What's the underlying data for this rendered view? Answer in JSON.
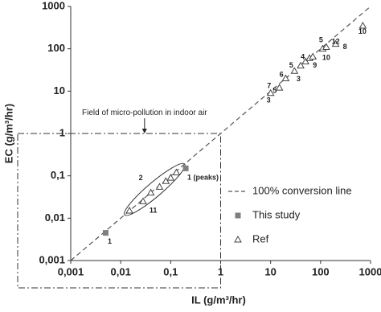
{
  "chart_data": {
    "type": "scatter",
    "x_label": "IL (g/m³/hr)",
    "y_label": "EC (g/m³/hr)",
    "log_x": true,
    "log_y": true,
    "xlim": [
      0.001,
      1000
    ],
    "ylim": [
      0.001,
      1000
    ],
    "xticks": [
      {
        "value": 0.001,
        "label": "0,001"
      },
      {
        "value": 0.01,
        "label": "0,01"
      },
      {
        "value": 0.1,
        "label": "0,1"
      },
      1,
      10,
      100,
      1000
    ],
    "yticks": [
      {
        "value": 0.001,
        "label": "0,001"
      },
      {
        "value": 0.01,
        "label": "0,01"
      },
      {
        "value": 0.1,
        "label": "0,1"
      },
      1,
      10,
      100,
      1000
    ],
    "legend": "lower right",
    "series": [
      {
        "name": "100% conversion line",
        "marker": "dashed-line",
        "color": "#555555",
        "x": [
          0.001,
          1000
        ],
        "values": [
          0.001,
          1000
        ]
      },
      {
        "name": "This study",
        "marker": "square",
        "color": "#7f7f7f",
        "x": [
          0.005,
          0.2
        ],
        "values": [
          0.0045,
          0.15
        ]
      },
      {
        "name": "Ref",
        "marker": "triangle",
        "color": "#444444",
        "x": [
          0.015,
          0.028,
          0.04,
          0.06,
          0.08,
          0.1,
          0.13,
          10,
          15,
          20,
          30,
          40,
          50,
          60,
          70,
          110,
          130,
          200,
          700
        ],
        "values": [
          0.015,
          0.025,
          0.04,
          0.055,
          0.075,
          0.09,
          0.12,
          9,
          12,
          20,
          30,
          40,
          50,
          60,
          65,
          100,
          110,
          130,
          350
        ]
      }
    ],
    "annotations": [
      {
        "text": "Field of micro-pollution in indoor air",
        "x": 0.03,
        "y": 3.1
      },
      {
        "text": "1",
        "x": 0.0055,
        "y": 0.0028
      },
      {
        "text": "1 (peaks)",
        "x": 0.215,
        "y": 0.09
      },
      {
        "text": "2",
        "x": 0.023,
        "y": 0.087
      },
      {
        "text": "11",
        "x": 0.0376,
        "y": 0.015
      },
      {
        "text": "3",
        "x": 8.3,
        "y": 6
      },
      {
        "text": "7",
        "x": 8.5,
        "y": 13
      },
      {
        "text": "5",
        "x": 11,
        "y": 10
      },
      {
        "text": "6",
        "x": 15,
        "y": 24
      },
      {
        "text": "5",
        "x": 23.5,
        "y": 40
      },
      {
        "text": "3",
        "x": 33,
        "y": 19
      },
      {
        "text": "4",
        "x": 40,
        "y": 63
      },
      {
        "text": "9",
        "x": 70,
        "y": 40
      },
      {
        "text": "5",
        "x": 93,
        "y": 160
      },
      {
        "text": "10",
        "x": 108,
        "y": 61
      },
      {
        "text": "12",
        "x": 167,
        "y": 145
      },
      {
        "text": "8",
        "x": 280,
        "y": 110
      },
      {
        "text": "10",
        "x": 570,
        "y": 250
      }
    ]
  }
}
